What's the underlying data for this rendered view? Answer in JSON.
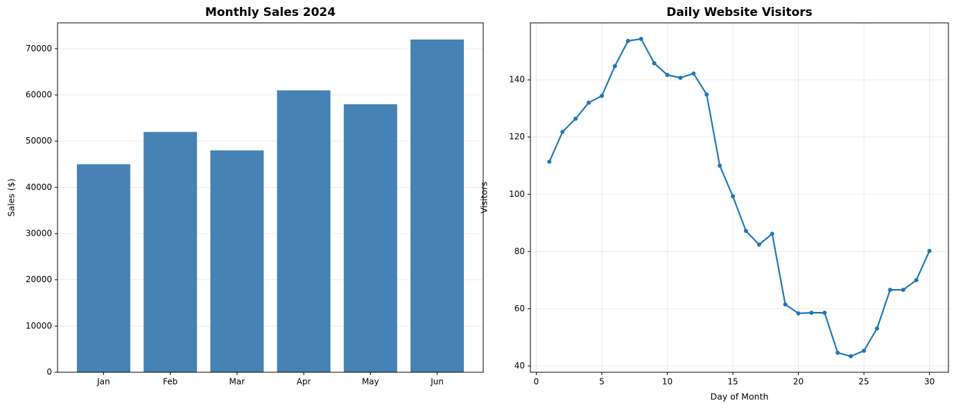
{
  "chart_data": [
    {
      "type": "bar",
      "title": "Monthly Sales 2024",
      "ylabel": "Sales ($)",
      "categories": [
        "Jan",
        "Feb",
        "Mar",
        "Apr",
        "May",
        "Jun"
      ],
      "values": [
        45000,
        52000,
        48000,
        61000,
        58000,
        72000
      ],
      "color": "#4682b4",
      "ylim": [
        0,
        75600
      ],
      "yticks": [
        0,
        10000,
        20000,
        30000,
        40000,
        50000,
        60000,
        70000
      ],
      "grid": "y"
    },
    {
      "type": "line",
      "title": "Daily Website Visitors",
      "xlabel": "Day of Month",
      "ylabel": "Visitors",
      "x": [
        1,
        2,
        3,
        4,
        5,
        6,
        7,
        8,
        9,
        10,
        11,
        12,
        13,
        14,
        15,
        16,
        17,
        18,
        19,
        20,
        21,
        22,
        23,
        24,
        25,
        26,
        27,
        28,
        29,
        30
      ],
      "values": [
        111.4,
        121.8,
        126.4,
        132,
        134.4,
        144.8,
        153.6,
        154.3,
        145.8,
        141.7,
        140.7,
        142.2,
        134.9,
        110,
        99.3,
        87.2,
        82.4,
        86.2,
        61.5,
        58.4,
        58.6,
        58.6,
        44.6,
        43.4,
        45.3,
        53.1,
        66.6,
        66.6,
        70,
        80.2
      ],
      "color": "#1f77b4",
      "xlim": [
        -0.45,
        31.45
      ],
      "xticks": [
        0,
        5,
        10,
        15,
        20,
        25,
        30
      ],
      "ylim": [
        37.8,
        159.9
      ],
      "yticks": [
        40,
        60,
        80,
        100,
        120,
        140
      ],
      "grid": "both"
    }
  ]
}
